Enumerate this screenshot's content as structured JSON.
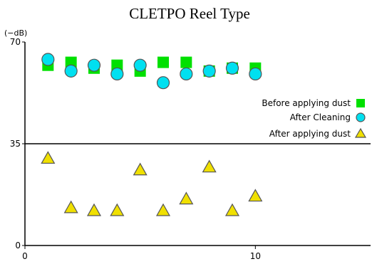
{
  "chart_data": {
    "type": "scatter",
    "title": "CLETPO Reel Type",
    "ylabel": "(−dB)",
    "xlabel": "",
    "xlim": [
      0,
      15
    ],
    "ylim": [
      0,
      70
    ],
    "x_ticks": [
      0,
      10
    ],
    "y_ticks": [
      0,
      35,
      70
    ],
    "reference_line": 35,
    "legend_position": "right",
    "series": [
      {
        "name": "Before applying dust",
        "marker": "square",
        "color": "#00e000",
        "x": [
          1,
          2,
          3,
          4,
          5,
          6,
          7,
          8,
          9,
          10
        ],
        "y": [
          62,
          63,
          61,
          62,
          60,
          63,
          63,
          60,
          61,
          61
        ]
      },
      {
        "name": "After Cleaning",
        "marker": "circle",
        "color": "#00e0f0",
        "x": [
          1,
          2,
          3,
          4,
          5,
          6,
          7,
          8,
          9,
          10
        ],
        "y": [
          64,
          60,
          62,
          59,
          62,
          56,
          59,
          60,
          61,
          59
        ]
      },
      {
        "name": "After applying dust",
        "marker": "triangle",
        "color": "#f0e000",
        "x": [
          1,
          2,
          3,
          4,
          5,
          6,
          7,
          8,
          9,
          10
        ],
        "y": [
          30,
          13,
          12,
          12,
          26,
          12,
          16,
          27,
          12,
          17
        ]
      }
    ]
  }
}
